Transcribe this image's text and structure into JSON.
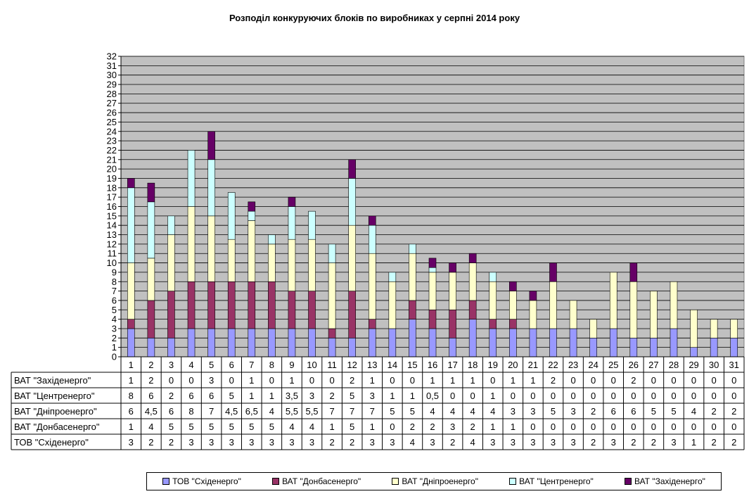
{
  "chart_data": {
    "type": "bar",
    "stacked": true,
    "title": "Розподіл конкуруючих блоків по виробниках у серпні 2014 року",
    "categories": [
      "1",
      "2",
      "3",
      "4",
      "5",
      "6",
      "7",
      "8",
      "9",
      "10",
      "11",
      "12",
      "13",
      "14",
      "15",
      "16",
      "17",
      "18",
      "19",
      "20",
      "21",
      "22",
      "23",
      "24",
      "25",
      "26",
      "27",
      "28",
      "29",
      "30",
      "31"
    ],
    "ylim": [
      0,
      32
    ],
    "yticks": [
      0,
      1,
      2,
      3,
      4,
      5,
      6,
      7,
      8,
      9,
      10,
      11,
      12,
      13,
      14,
      15,
      16,
      17,
      18,
      19,
      20,
      21,
      22,
      23,
      24,
      25,
      26,
      27,
      28,
      29,
      30,
      31,
      32
    ],
    "grid": true,
    "legend_position": "bottom",
    "series": [
      {
        "name": "ТОВ \"Східенерго\"",
        "color": "#9999FF",
        "values": [
          3,
          2,
          2,
          3,
          3,
          3,
          3,
          3,
          3,
          3,
          2,
          2,
          3,
          3,
          4,
          3,
          2,
          4,
          3,
          3,
          3,
          3,
          3,
          2,
          3,
          2,
          2,
          3,
          1,
          2,
          2
        ],
        "labels": [
          "3",
          "2",
          "2",
          "3",
          "3",
          "3",
          "3",
          "3",
          "3",
          "3",
          "2",
          "2",
          "3",
          "3",
          "4",
          "3",
          "2",
          "4",
          "3",
          "3",
          "3",
          "3",
          "3",
          "2",
          "3",
          "2",
          "2",
          "3",
          "1",
          "2",
          "2"
        ]
      },
      {
        "name": "ВАТ \"Донбасенерго\"",
        "color": "#993366",
        "values": [
          1,
          4,
          5,
          5,
          5,
          5,
          5,
          5,
          4,
          4,
          1,
          5,
          1,
          0,
          2,
          2,
          3,
          2,
          1,
          1,
          0,
          0,
          0,
          0,
          0,
          0,
          0,
          0,
          0,
          0,
          0
        ],
        "labels": [
          "1",
          "4",
          "5",
          "5",
          "5",
          "5",
          "5",
          "5",
          "4",
          "4",
          "1",
          "5",
          "1",
          "0",
          "2",
          "2",
          "3",
          "2",
          "1",
          "1",
          "0",
          "0",
          "0",
          "0",
          "0",
          "0",
          "0",
          "0",
          "0",
          "0",
          "0"
        ]
      },
      {
        "name": "ВАТ \"Дніпроенерго\"",
        "color": "#FFFFCC",
        "values": [
          6,
          4.5,
          6,
          8,
          7,
          4.5,
          6.5,
          4,
          5.5,
          5.5,
          7,
          7,
          7,
          5,
          5,
          4,
          4,
          4,
          4,
          3,
          3,
          5,
          3,
          2,
          6,
          6,
          5,
          5,
          4,
          2,
          2
        ],
        "labels": [
          "6",
          "4,5",
          "6",
          "8",
          "7",
          "4,5",
          "6,5",
          "4",
          "5,5",
          "5,5",
          "7",
          "7",
          "7",
          "5",
          "5",
          "4",
          "4",
          "4",
          "4",
          "3",
          "3",
          "5",
          "3",
          "2",
          "6",
          "6",
          "5",
          "5",
          "4",
          "2",
          "2"
        ]
      },
      {
        "name": "ВАТ \"Центренерго\"",
        "color": "#CCFFFF",
        "values": [
          8,
          6,
          2,
          6,
          6,
          5,
          1,
          1,
          3.5,
          3,
          2,
          5,
          3,
          1,
          1,
          0.5,
          0,
          0,
          1,
          0,
          0,
          0,
          0,
          0,
          0,
          0,
          0,
          0,
          0,
          0,
          0
        ],
        "labels": [
          "8",
          "6",
          "2",
          "6",
          "6",
          "5",
          "1",
          "1",
          "3,5",
          "3",
          "2",
          "5",
          "3",
          "1",
          "1",
          "0,5",
          "0",
          "0",
          "1",
          "0",
          "0",
          "0",
          "0",
          "0",
          "0",
          "0",
          "0",
          "0",
          "0",
          "0",
          "0"
        ]
      },
      {
        "name": "ВАТ \"Західенерго\"",
        "color": "#660066",
        "values": [
          1,
          2,
          0,
          0,
          3,
          0,
          1,
          0,
          1,
          0,
          0,
          2,
          1,
          0,
          0,
          1,
          1,
          1,
          0,
          1,
          1,
          2,
          0,
          0,
          0,
          2,
          0,
          0,
          0,
          0,
          0
        ],
        "labels": [
          "1",
          "2",
          "0",
          "0",
          "3",
          "0",
          "1",
          "0",
          "1",
          "0",
          "0",
          "2",
          "1",
          "0",
          "0",
          "1",
          "1",
          "1",
          "0",
          "1",
          "1",
          "2",
          "0",
          "0",
          "0",
          "2",
          "0",
          "0",
          "0",
          "0",
          "0"
        ]
      }
    ],
    "table_row_order": [
      4,
      3,
      2,
      1,
      0
    ],
    "legend_order": [
      0,
      1,
      2,
      3,
      4
    ]
  }
}
